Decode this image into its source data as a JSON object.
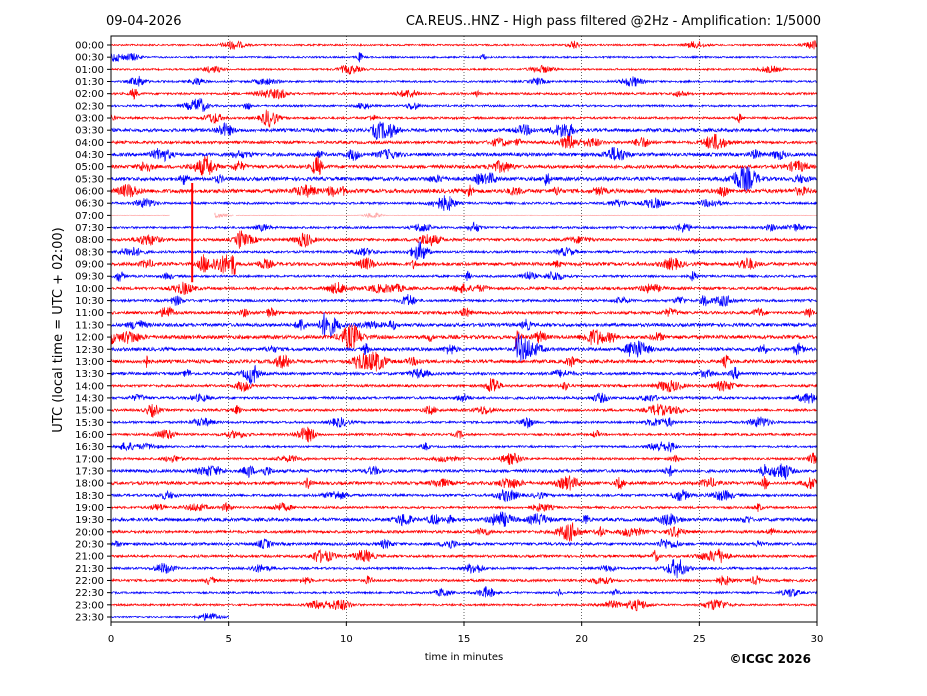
{
  "chart_data": {
    "type": "line",
    "title_left": "09-04-2026",
    "title": "CA.REUS..HNZ - High pass filtered @2Hz - Amplification: 1/5000",
    "xlabel": "time in minutes",
    "ylabel": "UTC (local time = UTC + 02:00)",
    "xlim": [
      0,
      30
    ],
    "xticks": [
      0,
      5,
      10,
      15,
      20,
      25,
      30
    ],
    "grid": "vertical dotted at 5-minute intervals",
    "copyright": "©ICGC 2026",
    "colors": [
      "#ff0000",
      "#0000ff"
    ],
    "rows": [
      {
        "label": "00:00",
        "amp": 0.3
      },
      {
        "label": "00:30",
        "amp": 0.3
      },
      {
        "label": "01:00",
        "amp": 0.3
      },
      {
        "label": "01:30",
        "amp": 0.35
      },
      {
        "label": "02:00",
        "amp": 0.4
      },
      {
        "label": "02:30",
        "amp": 0.35
      },
      {
        "label": "03:00",
        "amp": 0.4
      },
      {
        "label": "03:30",
        "amp": 0.6
      },
      {
        "label": "04:00",
        "amp": 0.5
      },
      {
        "label": "04:30",
        "amp": 0.6
      },
      {
        "label": "05:00",
        "amp": 0.6
      },
      {
        "label": "05:30",
        "amp": 0.65
      },
      {
        "label": "06:00",
        "amp": 0.7
      },
      {
        "label": "06:30",
        "amp": 0.4
      },
      {
        "label": "07:00",
        "amp": 0.08
      },
      {
        "label": "07:30",
        "amp": 0.4
      },
      {
        "label": "08:00",
        "amp": 0.5
      },
      {
        "label": "08:30",
        "amp": 0.4
      },
      {
        "label": "09:00",
        "amp": 0.6
      },
      {
        "label": "09:30",
        "amp": 0.4
      },
      {
        "label": "10:00",
        "amp": 0.5
      },
      {
        "label": "10:30",
        "amp": 0.45
      },
      {
        "label": "11:00",
        "amp": 0.5
      },
      {
        "label": "11:30",
        "amp": 0.6
      },
      {
        "label": "12:00",
        "amp": 0.65
      },
      {
        "label": "12:30",
        "amp": 0.6
      },
      {
        "label": "13:00",
        "amp": 0.6
      },
      {
        "label": "13:30",
        "amp": 0.5
      },
      {
        "label": "14:00",
        "amp": 0.45
      },
      {
        "label": "14:30",
        "amp": 0.45
      },
      {
        "label": "15:00",
        "amp": 0.45
      },
      {
        "label": "15:30",
        "amp": 0.4
      },
      {
        "label": "16:00",
        "amp": 0.4
      },
      {
        "label": "16:30",
        "amp": 0.35
      },
      {
        "label": "17:00",
        "amp": 0.4
      },
      {
        "label": "17:30",
        "amp": 0.55
      },
      {
        "label": "18:00",
        "amp": 0.55
      },
      {
        "label": "18:30",
        "amp": 0.45
      },
      {
        "label": "19:00",
        "amp": 0.4
      },
      {
        "label": "19:30",
        "amp": 0.6
      },
      {
        "label": "20:00",
        "amp": 0.5
      },
      {
        "label": "20:30",
        "amp": 0.5
      },
      {
        "label": "21:00",
        "amp": 0.45
      },
      {
        "label": "21:30",
        "amp": 0.4
      },
      {
        "label": "22:00",
        "amp": 0.45
      },
      {
        "label": "22:30",
        "amp": 0.35
      },
      {
        "label": "23:00",
        "amp": 0.35
      },
      {
        "label": "23:30",
        "amp": 0.25,
        "end": 5
      }
    ],
    "events": [
      {
        "row": "09:00",
        "start": 3.8,
        "end": 5.3,
        "amp": 2.2
      },
      {
        "row": "12:30",
        "start": 17.2,
        "end": 18.5,
        "amp": 3.5
      },
      {
        "row": "12:00",
        "start": 17.2,
        "end": 17.6,
        "amp": 2.0
      },
      {
        "row": "07:00",
        "start": 4.4,
        "end": 5.2,
        "amp": 0.9
      }
    ],
    "gaps": [
      {
        "row": "07:00",
        "start": 2.5,
        "end": 4.4
      },
      {
        "row": "07:00",
        "start": 5.2,
        "end": 5.3
      }
    ],
    "spike": {
      "minute": 3.45,
      "from_row": "06:00",
      "to_row": "09:30"
    }
  }
}
